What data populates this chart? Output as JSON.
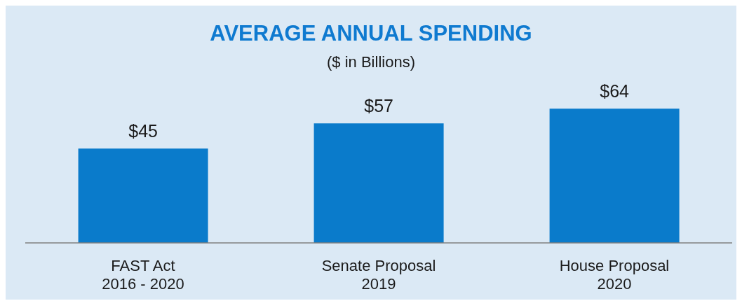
{
  "chart_data": {
    "type": "bar",
    "title": "AVERAGE ANNUAL SPENDING",
    "subtitle": "($ in Billions)",
    "categories": [
      "FAST Act\n2016 - 2020",
      "Senate Proposal\n2019",
      "House Proposal\n2020"
    ],
    "values": [
      45,
      57,
      64
    ],
    "value_labels": [
      "$45",
      "$57",
      "$64"
    ],
    "color": "#0a7bcb",
    "grid": false,
    "legend": false
  }
}
